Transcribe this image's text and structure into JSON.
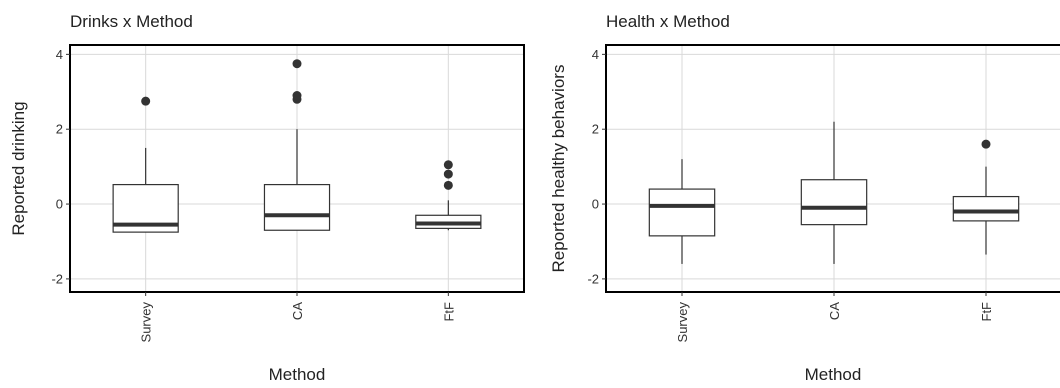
{
  "chart_data": [
    {
      "type": "box",
      "title": "Drinks x Method",
      "xlabel": "Method",
      "ylabel": "Reported drinking",
      "ylim": [
        -2.35,
        4.25
      ],
      "yticks": [
        "-2",
        "0",
        "2",
        "4"
      ],
      "grid": true,
      "categories": [
        "Survey",
        "CA",
        "FtF"
      ],
      "boxes": [
        {
          "category": "Survey",
          "whisker_low": -0.75,
          "q1": -0.75,
          "median": -0.55,
          "q3": 0.52,
          "whisker_high": 1.5,
          "outliers": [
            2.75
          ]
        },
        {
          "category": "CA",
          "whisker_low": -0.7,
          "q1": -0.7,
          "median": -0.3,
          "q3": 0.52,
          "whisker_high": 2.0,
          "outliers": [
            2.8,
            2.9,
            3.75
          ]
        },
        {
          "category": "FtF",
          "whisker_low": -0.7,
          "q1": -0.65,
          "median": -0.52,
          "q3": -0.3,
          "whisker_high": 0.1,
          "outliers": [
            0.5,
            0.8,
            1.05
          ]
        }
      ]
    },
    {
      "type": "box",
      "title": "Health x Method",
      "xlabel": "Method",
      "ylabel": "Reported healthy behaviors",
      "ylim": [
        -2.35,
        4.25
      ],
      "yticks": [
        "-2",
        "0",
        "2",
        "4"
      ],
      "grid": true,
      "categories": [
        "Survey",
        "CA",
        "FtF"
      ],
      "boxes": [
        {
          "category": "Survey",
          "whisker_low": -1.6,
          "q1": -0.85,
          "median": -0.05,
          "q3": 0.4,
          "whisker_high": 1.2,
          "outliers": []
        },
        {
          "category": "CA",
          "whisker_low": -1.6,
          "q1": -0.55,
          "median": -0.1,
          "q3": 0.65,
          "whisker_high": 2.2,
          "outliers": []
        },
        {
          "category": "FtF",
          "whisker_low": -1.35,
          "q1": -0.45,
          "median": -0.2,
          "q3": 0.2,
          "whisker_high": 1.0,
          "outliers": [
            1.6
          ]
        }
      ]
    }
  ]
}
